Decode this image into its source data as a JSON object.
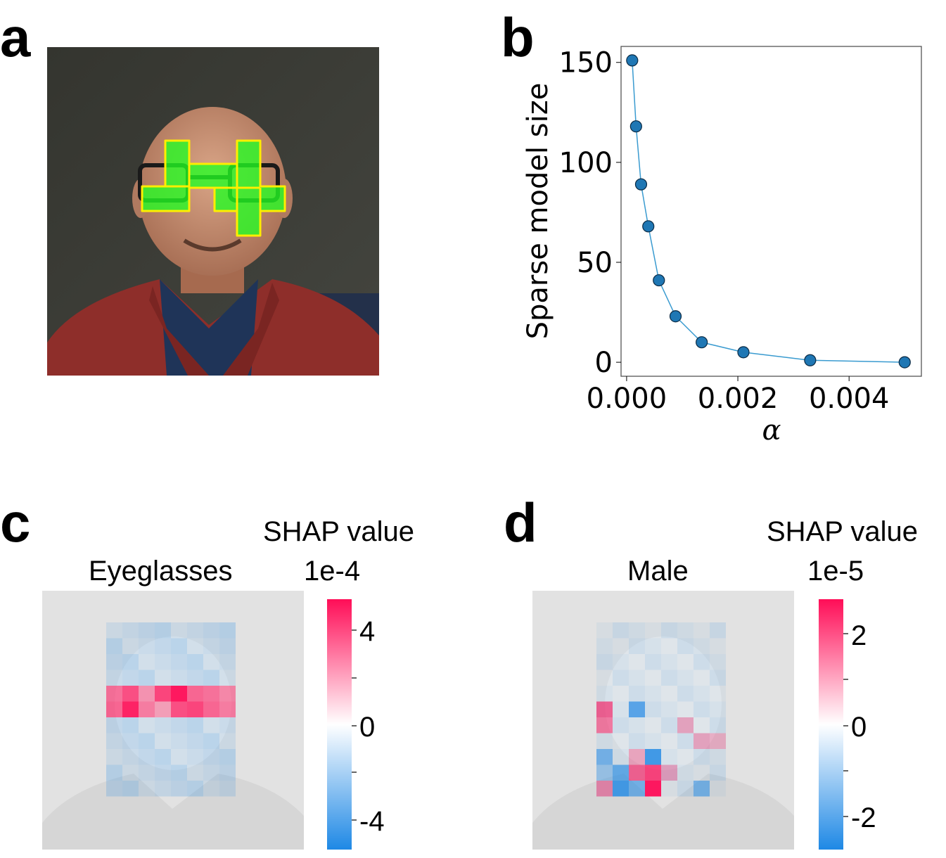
{
  "panels": {
    "a": {
      "label": "a"
    },
    "b": {
      "label": "b"
    },
    "c": {
      "label": "c",
      "title": "Eyeglasses",
      "cbar_title": "SHAP value",
      "cbar_scale": "1e-4",
      "cbar_ticks": [
        "4",
        "0",
        "-4"
      ]
    },
    "d": {
      "label": "d",
      "title": "Male",
      "cbar_title": "SHAP value",
      "cbar_scale": "1e-5",
      "cbar_ticks": [
        "2",
        "0",
        "-2"
      ]
    }
  },
  "colors": {
    "positive": "#ff0d57",
    "negative": "#1e88e5",
    "line": "#3a9bd0",
    "marker": "#1f77b4",
    "highlight_fill": "#22ff22",
    "highlight_edge": "#ffee00"
  },
  "chart_data": [
    {
      "type": "line",
      "panel": "b",
      "xlabel": "α",
      "ylabel": "Sparse model size",
      "xlim": [
        -0.0001,
        0.0053
      ],
      "ylim": [
        -7,
        158
      ],
      "xticks": [
        "0.000",
        "0.002",
        "0.004"
      ],
      "xtick_values": [
        0.0,
        0.002,
        0.004
      ],
      "yticks": [
        "0",
        "50",
        "100",
        "150"
      ],
      "ytick_values": [
        0,
        50,
        100,
        150
      ],
      "x": [
        0.0001,
        0.00017,
        0.00026,
        0.00039,
        0.00058,
        0.00088,
        0.00135,
        0.0021,
        0.0033,
        0.005
      ],
      "y": [
        151,
        118,
        89,
        68,
        41,
        23,
        10,
        5,
        1,
        0
      ]
    }
  ]
}
